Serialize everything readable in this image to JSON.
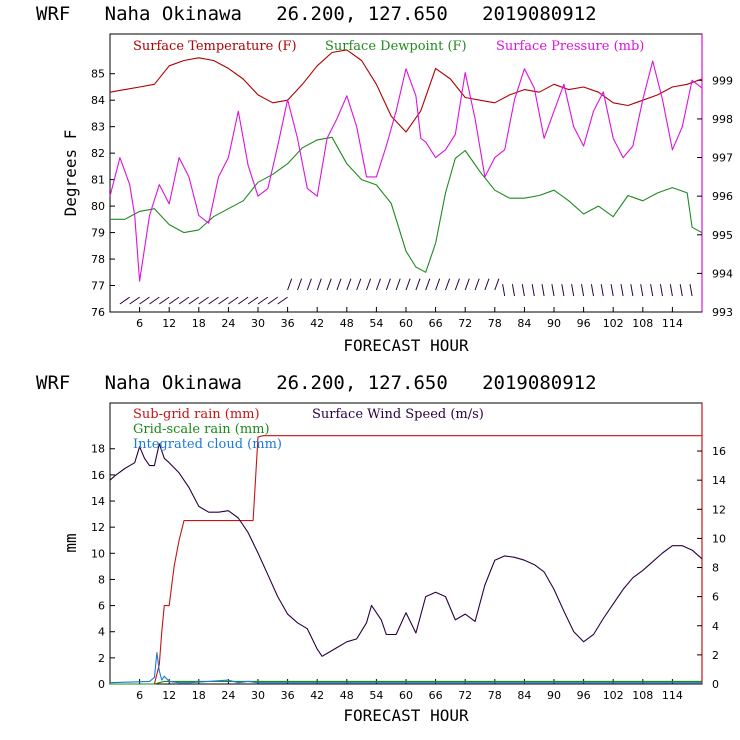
{
  "colors": {
    "temperature": "#b00000",
    "dewpoint": "#208a20",
    "pressure": "#dd11dd",
    "subgrid_rain": "#c41414",
    "grid_rain": "#1a8a1a",
    "cloud": "#1a7ad4",
    "wind": "#2a0040",
    "axis": "#000000"
  },
  "chart_data": [
    {
      "type": "line",
      "title": "WRF   Naha Okinawa   26.200, 127.650   2019080912",
      "xlabel": "FORECAST HOUR",
      "ylabel": "Degrees F",
      "xlim": [
        0,
        120
      ],
      "ylim": [
        76,
        86.5
      ],
      "y2lim": [
        993,
        1000.2
      ],
      "xticks": [
        6,
        12,
        18,
        24,
        30,
        36,
        42,
        48,
        54,
        60,
        66,
        72,
        78,
        84,
        90,
        96,
        102,
        108,
        114
      ],
      "yticks": [
        76,
        77,
        78,
        79,
        80,
        81,
        82,
        83,
        84,
        85
      ],
      "y2ticks": [
        993,
        994,
        995,
        996,
        997,
        998,
        999
      ],
      "legend": [
        "Surface Temperature (F)",
        "Surface Dewpoint (F)",
        "Surface Pressure (mb)"
      ],
      "series": [
        {
          "name": "Surface Temperature (F)",
          "axis": "left",
          "color": "#b00000",
          "x": [
            0,
            3,
            6,
            9,
            12,
            15,
            18,
            21,
            24,
            27,
            30,
            33,
            36,
            39,
            42,
            45,
            48,
            51,
            54,
            57,
            60,
            63,
            66,
            69,
            72,
            75,
            78,
            81,
            84,
            87,
            90,
            93,
            96,
            99,
            102,
            105,
            108,
            111,
            114,
            117,
            120
          ],
          "y": [
            84.3,
            84.4,
            84.5,
            84.6,
            85.3,
            85.5,
            85.6,
            85.5,
            85.2,
            84.8,
            84.2,
            83.9,
            84.0,
            84.6,
            85.3,
            85.8,
            85.9,
            85.5,
            84.6,
            83.4,
            82.8,
            83.6,
            85.2,
            84.8,
            84.1,
            84.0,
            83.9,
            84.2,
            84.4,
            84.3,
            84.6,
            84.4,
            84.5,
            84.3,
            83.9,
            83.8,
            84.0,
            84.2,
            84.5,
            84.6,
            84.8
          ]
        },
        {
          "name": "Surface Dewpoint (F)",
          "axis": "left",
          "color": "#208a20",
          "x": [
            0,
            3,
            6,
            9,
            12,
            15,
            18,
            21,
            24,
            27,
            30,
            33,
            36,
            39,
            42,
            45,
            48,
            51,
            54,
            57,
            60,
            62,
            64,
            66,
            68,
            70,
            72,
            75,
            78,
            81,
            84,
            87,
            90,
            93,
            96,
            99,
            102,
            105,
            108,
            111,
            114,
            117,
            118,
            120
          ],
          "y": [
            79.5,
            79.5,
            79.8,
            79.9,
            79.3,
            79.0,
            79.1,
            79.6,
            79.9,
            80.2,
            80.9,
            81.2,
            81.6,
            82.2,
            82.5,
            82.6,
            81.6,
            81.0,
            80.8,
            80.1,
            78.3,
            77.7,
            77.5,
            78.6,
            80.5,
            81.8,
            82.1,
            81.3,
            80.6,
            80.3,
            80.3,
            80.4,
            80.6,
            80.2,
            79.7,
            80.0,
            79.6,
            80.4,
            80.2,
            80.5,
            80.7,
            80.5,
            79.2,
            79.0
          ]
        },
        {
          "name": "Surface Pressure (mb)",
          "axis": "right",
          "color": "#dd11dd",
          "x": [
            0,
            2,
            4,
            5,
            6,
            8,
            10,
            12,
            14,
            16,
            18,
            20,
            22,
            24,
            26,
            28,
            30,
            32,
            34,
            36,
            38,
            40,
            42,
            44,
            46,
            48,
            50,
            52,
            54,
            56,
            58,
            60,
            62,
            63,
            64,
            66,
            68,
            70,
            72,
            74,
            76,
            78,
            80,
            82,
            84,
            86,
            88,
            90,
            92,
            94,
            96,
            98,
            100,
            102,
            104,
            106,
            108,
            110,
            112,
            114,
            116,
            118,
            120
          ],
          "y": [
            996.0,
            997.0,
            996.3,
            995.5,
            993.8,
            995.5,
            996.3,
            995.8,
            997.0,
            996.5,
            995.5,
            995.3,
            996.5,
            997.0,
            998.2,
            996.8,
            996.0,
            996.2,
            997.3,
            998.5,
            997.5,
            996.2,
            996.0,
            997.5,
            998.0,
            998.6,
            997.8,
            996.5,
            996.5,
            997.3,
            998.2,
            999.3,
            998.6,
            997.5,
            997.4,
            997.0,
            997.2,
            997.6,
            999.2,
            998.0,
            996.5,
            997.0,
            997.2,
            998.5,
            999.3,
            998.8,
            997.5,
            998.2,
            998.9,
            997.8,
            997.3,
            998.2,
            998.7,
            997.5,
            997.0,
            997.3,
            998.5,
            999.5,
            998.5,
            997.2,
            997.8,
            999.0,
            998.8
          ]
        }
      ]
    },
    {
      "type": "line",
      "title": "WRF   Naha Okinawa   26.200, 127.650   2019080912",
      "xlabel": "FORECAST HOUR",
      "ylabel": "mm",
      "xlim": [
        0,
        120
      ],
      "ylim": [
        0,
        21.5
      ],
      "y2lim": [
        0,
        19.3
      ],
      "xticks": [
        6,
        12,
        18,
        24,
        30,
        36,
        42,
        48,
        54,
        60,
        66,
        72,
        78,
        84,
        90,
        96,
        102,
        108,
        114
      ],
      "yticks": [
        0,
        2,
        4,
        6,
        8,
        10,
        12,
        14,
        16,
        18
      ],
      "y2ticks": [
        0,
        2,
        4,
        6,
        8,
        10,
        12,
        14,
        16
      ],
      "legend": [
        "Sub-grid rain (mm)",
        "Surface Wind Speed (m/s)",
        "Grid-scale rain (mm)",
        "Integrated cloud (mm)"
      ],
      "series": [
        {
          "name": "Sub-grid rain (mm)",
          "axis": "left",
          "color": "#c41414",
          "x": [
            0,
            9,
            10,
            10.5,
            11,
            12,
            13,
            14,
            15,
            20,
            25,
            29,
            30,
            31,
            40,
            60,
            80,
            100,
            120
          ],
          "y": [
            0,
            0,
            1.5,
            4,
            6,
            6,
            9,
            11,
            12.5,
            12.5,
            12.5,
            12.5,
            18.9,
            19.0,
            19.0,
            19.0,
            19.0,
            19.0,
            19.0
          ]
        },
        {
          "name": "Grid-scale rain (mm)",
          "axis": "left",
          "color": "#1a8a1a",
          "x": [
            0,
            9,
            10,
            11,
            12,
            20,
            30,
            40,
            60,
            80,
            100,
            120
          ],
          "y": [
            0,
            0,
            0.1,
            0.2,
            0.2,
            0.2,
            0.2,
            0.2,
            0.2,
            0.2,
            0.2,
            0.2
          ]
        },
        {
          "name": "Integrated cloud (mm)",
          "axis": "left",
          "color": "#1a7ad4",
          "x": [
            0,
            8,
            9,
            9.5,
            10,
            10.5,
            11,
            12,
            14,
            16,
            20,
            24,
            26,
            28,
            30,
            40,
            60,
            80,
            100,
            120
          ],
          "y": [
            0.1,
            0.2,
            0.5,
            2.4,
            1.0,
            0.3,
            0.6,
            0.2,
            0.1,
            0.1,
            0.2,
            0.3,
            0.1,
            0.2,
            0.1,
            0.1,
            0.1,
            0.1,
            0.1,
            0.1
          ]
        },
        {
          "name": "Surface Wind Speed (m/s)",
          "axis": "right",
          "color": "#2a0040",
          "x": [
            0,
            1,
            3,
            5,
            6,
            7,
            8,
            9,
            10,
            11,
            12,
            14,
            16,
            18,
            20,
            22,
            24,
            26,
            28,
            30,
            32,
            34,
            36,
            38,
            40,
            42,
            43,
            44,
            46,
            48,
            50,
            52,
            53,
            55,
            56,
            58,
            60,
            62,
            64,
            66,
            68,
            70,
            72,
            74,
            76,
            78,
            80,
            82,
            84,
            86,
            88,
            90,
            92,
            94,
            96,
            98,
            100,
            102,
            104,
            106,
            108,
            110,
            112,
            114,
            116,
            118,
            120
          ],
          "y": [
            14.0,
            14.3,
            14.8,
            15.2,
            16.3,
            15.5,
            15.0,
            15.0,
            16.5,
            15.5,
            15.2,
            14.5,
            13.5,
            12.2,
            11.8,
            11.8,
            11.9,
            11.4,
            10.4,
            9.0,
            7.5,
            6.0,
            4.8,
            4.2,
            3.8,
            2.4,
            1.9,
            2.1,
            2.5,
            2.9,
            3.1,
            4.2,
            5.4,
            4.4,
            3.4,
            3.4,
            4.9,
            3.5,
            6.0,
            6.3,
            6.0,
            4.4,
            4.8,
            4.3,
            6.8,
            8.5,
            8.8,
            8.7,
            8.5,
            8.2,
            7.7,
            6.5,
            5.0,
            3.6,
            2.9,
            3.4,
            4.5,
            5.5,
            6.5,
            7.3,
            7.8,
            8.4,
            9.0,
            9.5,
            9.5,
            9.2,
            8.6
          ]
        }
      ]
    }
  ]
}
